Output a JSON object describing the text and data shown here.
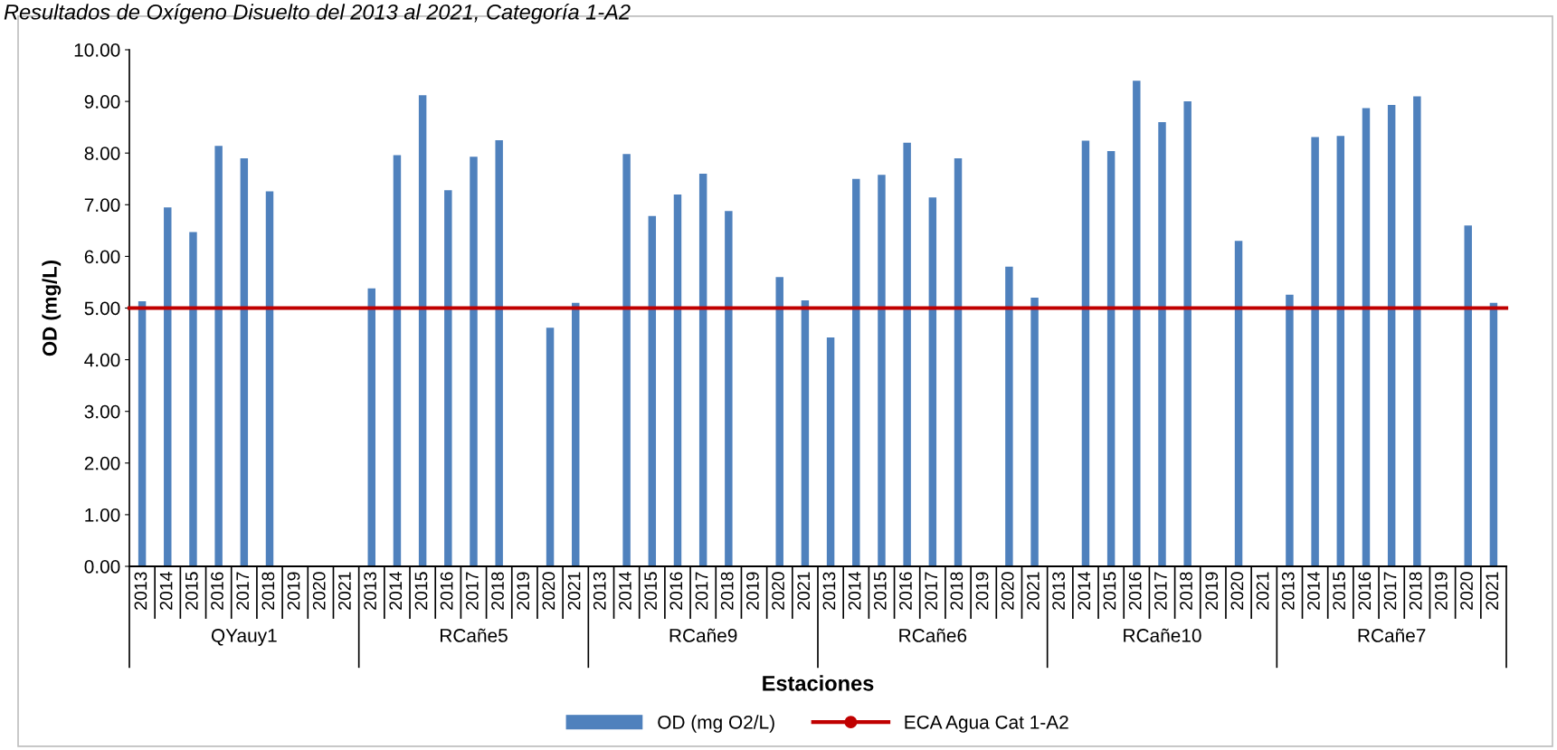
{
  "chart_data": {
    "type": "bar",
    "title": "Resultados de Oxígeno Disuelto del 2013 al 2021, Categoría 1-A2",
    "xlabel": "Estaciones",
    "ylabel": "OD (mg/L)",
    "categories": [
      "2013",
      "2014",
      "2015",
      "2016",
      "2017",
      "2018",
      "2019",
      "2020",
      "2021",
      "2013",
      "2014",
      "2015",
      "2016",
      "2017",
      "2018",
      "2019",
      "2020",
      "2021",
      "2013",
      "2014",
      "2015",
      "2016",
      "2017",
      "2018",
      "2019",
      "2020",
      "2021",
      "2013",
      "2014",
      "2015",
      "2016",
      "2017",
      "2018",
      "2019",
      "2020",
      "2021",
      "2013",
      "2014",
      "2015",
      "2016",
      "2017",
      "2018",
      "2019",
      "2020",
      "2021",
      "2013",
      "2014",
      "2015",
      "2016",
      "2017",
      "2018",
      "2019",
      "2020",
      "2021"
    ],
    "annotations": [
      "QYauy1",
      "RCañe5",
      "RCañe9",
      "RCañe6",
      "RCañe10",
      "RCañe7"
    ],
    "series": [
      {
        "name": "OD (mg O2/L)",
        "color": "#4f81bd",
        "values": [
          5.13,
          6.95,
          6.47,
          8.14,
          7.9,
          7.26,
          null,
          null,
          null,
          5.38,
          7.96,
          9.12,
          7.28,
          7.93,
          8.25,
          null,
          4.62,
          5.1,
          null,
          7.98,
          6.78,
          7.2,
          7.6,
          6.88,
          null,
          5.6,
          5.15,
          4.43,
          7.5,
          7.58,
          8.2,
          7.14,
          7.9,
          null,
          5.8,
          5.2,
          null,
          8.24,
          8.04,
          9.4,
          8.6,
          9.0,
          null,
          6.3,
          null,
          5.26,
          8.31,
          8.33,
          8.87,
          8.93,
          9.1,
          null,
          6.6,
          5.1
        ]
      }
    ],
    "ref_lines": [
      {
        "axis": "y",
        "value": 5.0,
        "label": "ECA Agua Cat 1-A2",
        "color": "#c00000",
        "line_style": "solid"
      }
    ],
    "marker": "circle",
    "ylim": [
      0,
      10
    ],
    "yticks": [
      {
        "value": 0,
        "label": "0.00"
      },
      {
        "value": 1,
        "label": "1.00"
      },
      {
        "value": 2,
        "label": "2.00"
      },
      {
        "value": 3,
        "label": "3.00"
      },
      {
        "value": 4,
        "label": "4.00"
      },
      {
        "value": 5,
        "label": "5.00"
      },
      {
        "value": 6,
        "label": "6.00"
      },
      {
        "value": 7,
        "label": "7.00"
      },
      {
        "value": 8,
        "label": "8.00"
      },
      {
        "value": 9,
        "label": "9.00"
      },
      {
        "value": 10,
        "label": "10.00"
      }
    ],
    "grid": false,
    "legend": "bottom"
  }
}
